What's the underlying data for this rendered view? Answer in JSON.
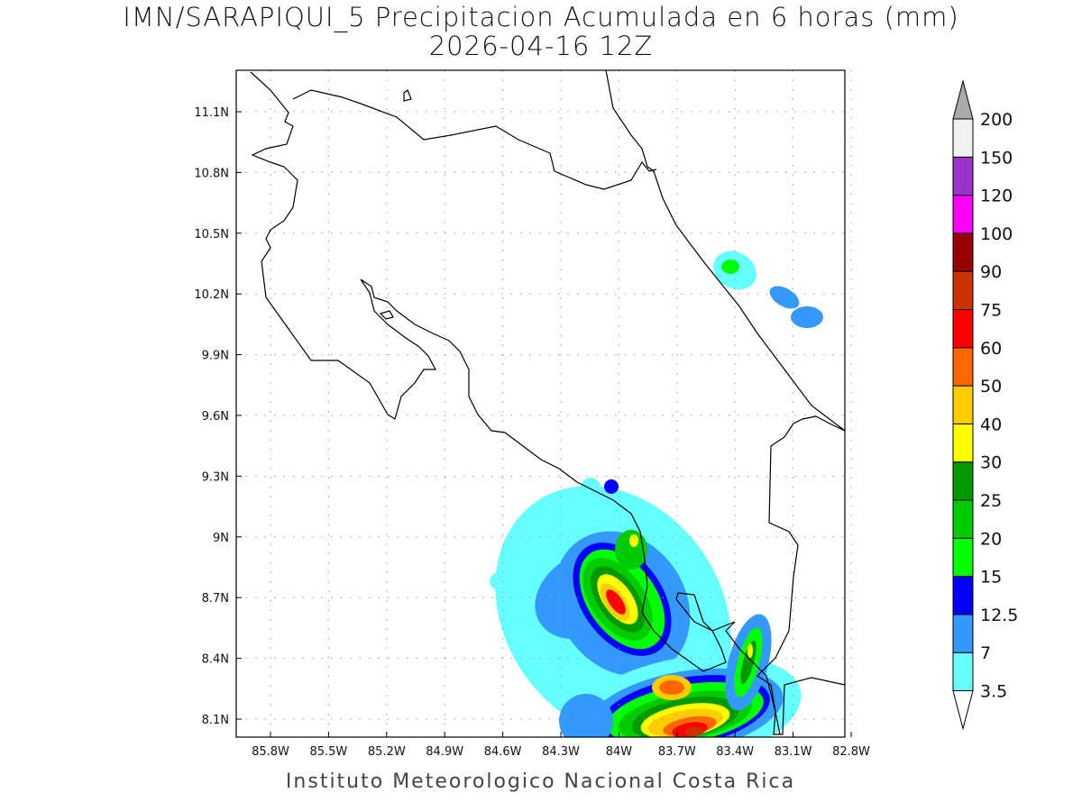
{
  "title": "IMN/SARAPIQUI_5 Precipitacion Acumulada en 6 horas (mm)",
  "valid_time": "2026-04-16 12Z",
  "footer": "Instituto Meteorologico Nacional Costa Rica",
  "map": {
    "lon_ticks": [
      "85.8W",
      "85.5W",
      "85.2W",
      "84.9W",
      "84.6W",
      "84.3W",
      "84W",
      "83.7W",
      "83.4W",
      "83.1W",
      "82.8W"
    ],
    "lat_ticks": [
      "11.1N",
      "10.8N",
      "10.5N",
      "10.2N",
      "9.9N",
      "9.6N",
      "9.3N",
      "9N",
      "8.7N",
      "8.4N",
      "8.1N"
    ],
    "grid": "dotted"
  },
  "colorbar": {
    "labels": [
      "3.5",
      "7",
      "12.5",
      "15",
      "20",
      "25",
      "30",
      "40",
      "50",
      "60",
      "75",
      "90",
      "100",
      "120",
      "150",
      "200"
    ],
    "colors": [
      "#66ffff",
      "#3399ff",
      "#0000ff",
      "#00ff00",
      "#00cc00",
      "#009900",
      "#ffff00",
      "#ffcc00",
      "#ff6600",
      "#ff0000",
      "#cc3300",
      "#990000",
      "#ff00ff",
      "#9933cc",
      "#f2f2f2"
    ],
    "over_color": "#aaaaaa",
    "under_color": "#ffffff"
  }
}
